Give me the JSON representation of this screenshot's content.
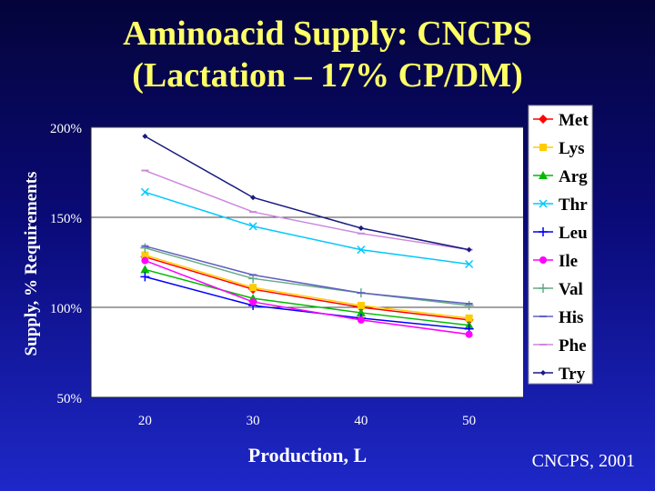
{
  "slide": {
    "title_line1": "Aminoacid Supply: CNCPS",
    "title_line2": "(Lactation – 17% CP/DM)",
    "source": "CNCPS, 2001"
  },
  "colors": {
    "title": "#ffff66",
    "plot_bg": "#ffffff",
    "axis_text": "#ffffff"
  },
  "chart_data": {
    "type": "line",
    "xlabel": "Production, L",
    "ylabel": "Supply, % Requirements",
    "categories": [
      "20",
      "30",
      "40",
      "50"
    ],
    "y_ticks": [
      "50%",
      "100%",
      "150%",
      "200%"
    ],
    "ylim": [
      50,
      200
    ],
    "grid": true,
    "legend_position": "right",
    "series": [
      {
        "name": "Met",
        "color": "#ff0000",
        "marker": "diamond",
        "values": [
          128,
          110,
          100,
          93
        ]
      },
      {
        "name": "Lys",
        "color": "#ffcc00",
        "marker": "square",
        "values": [
          129,
          111,
          101,
          94
        ]
      },
      {
        "name": "Arg",
        "color": "#00bb00",
        "marker": "triangle",
        "values": [
          121,
          105,
          97,
          90
        ]
      },
      {
        "name": "Thr",
        "color": "#00c8ff",
        "marker": "x",
        "values": [
          164,
          145,
          132,
          124
        ]
      },
      {
        "name": "Leu",
        "color": "#0000ff",
        "marker": "plus",
        "values": [
          117,
          101,
          94,
          88
        ]
      },
      {
        "name": "Ile",
        "color": "#ff00ff",
        "marker": "circle",
        "values": [
          126,
          103,
          93,
          85
        ]
      },
      {
        "name": "Val",
        "color": "#66aa88",
        "marker": "plus",
        "values": [
          133,
          116,
          108,
          101
        ]
      },
      {
        "name": "His",
        "color": "#6060c0",
        "marker": "dash",
        "values": [
          134,
          118,
          108,
          102
        ]
      },
      {
        "name": "Phe",
        "color": "#cc88dd",
        "marker": "dash",
        "values": [
          176,
          153,
          141,
          132
        ]
      },
      {
        "name": "Try",
        "color": "#1a1a80",
        "marker": "smalldiamond",
        "values": [
          195,
          161,
          144,
          132
        ]
      }
    ]
  }
}
